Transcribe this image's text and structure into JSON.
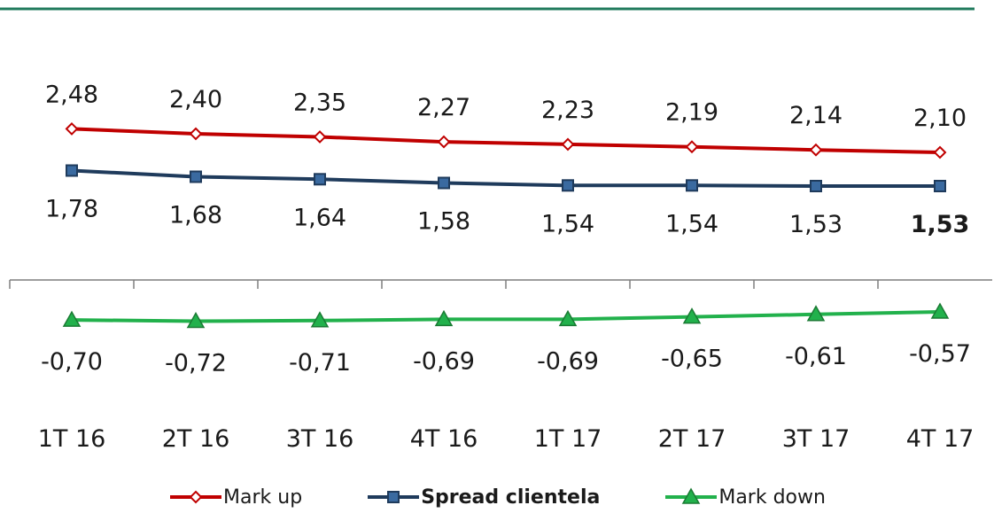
{
  "colors": {
    "top_rule": "#1f7a5c",
    "axis": "#7f7f7f",
    "series": [
      "#c00000",
      "#1f3b5c",
      "#22b14c"
    ],
    "marker_edge": [
      "#c00000",
      "#1f3b5c",
      "#1a7a33"
    ],
    "marker_fill": [
      "#ffffff",
      "#3a6aa0",
      "#22b14c"
    ]
  },
  "chart_data": {
    "type": "line",
    "categories": [
      "1T 16",
      "2T 16",
      "3T 16",
      "4T 16",
      "1T 17",
      "2T 17",
      "3T 17",
      "4T 17"
    ],
    "series": [
      {
        "name": "Mark up",
        "values": [
          2.48,
          2.4,
          2.35,
          2.27,
          2.23,
          2.19,
          2.14,
          2.1
        ],
        "labels": [
          "2,48",
          "2,40",
          "2,35",
          "2,27",
          "2,23",
          "2,19",
          "2,14",
          "2,10"
        ],
        "marker": "diamond",
        "legend_bold": false,
        "label_position": "above"
      },
      {
        "name": "Spread clientela",
        "values": [
          1.78,
          1.68,
          1.64,
          1.58,
          1.54,
          1.54,
          1.53,
          1.53
        ],
        "labels": [
          "1,78",
          "1,68",
          "1,64",
          "1,58",
          "1,54",
          "1,54",
          "1,53",
          "1,53"
        ],
        "marker": "square",
        "legend_bold": true,
        "last_label_bold": true,
        "label_position": "below"
      },
      {
        "name": "Mark down",
        "values": [
          -0.7,
          -0.72,
          -0.71,
          -0.69,
          -0.69,
          -0.65,
          -0.61,
          -0.57
        ],
        "labels": [
          "-0,70",
          "-0,72",
          "-0,71",
          "-0,69",
          "-0,69",
          "-0,65",
          "-0,61",
          "-0,57"
        ],
        "marker": "triangle",
        "legend_bold": false,
        "label_position": "below"
      }
    ],
    "title": "",
    "xlabel": "",
    "ylabel": "",
    "legend_position": "bottom",
    "grid": false
  }
}
